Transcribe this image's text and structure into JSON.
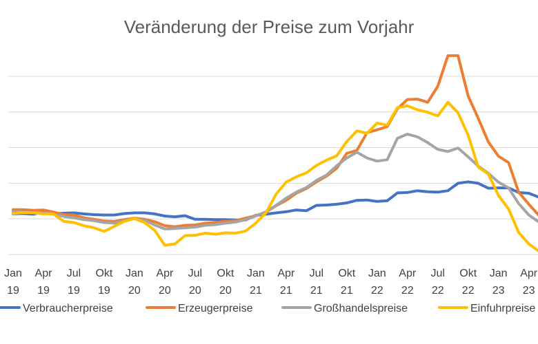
{
  "chart_data": {
    "type": "line",
    "title": "Veränderung der Preise zum Vorjahr",
    "xlabel": "",
    "ylabel": "",
    "ylim": [
      -10,
      45
    ],
    "grid": true,
    "legend_position": "bottom",
    "x": [
      "2019-01",
      "2019-02",
      "2019-03",
      "2019-04",
      "2019-05",
      "2019-06",
      "2019-07",
      "2019-08",
      "2019-09",
      "2019-10",
      "2019-11",
      "2019-12",
      "2020-01",
      "2020-02",
      "2020-03",
      "2020-04",
      "2020-05",
      "2020-06",
      "2020-07",
      "2020-08",
      "2020-09",
      "2020-10",
      "2020-11",
      "2020-12",
      "2021-01",
      "2021-02",
      "2021-03",
      "2021-04",
      "2021-05",
      "2021-06",
      "2021-07",
      "2021-08",
      "2021-09",
      "2021-10",
      "2021-11",
      "2021-12",
      "2022-01",
      "2022-02",
      "2022-03",
      "2022-04",
      "2022-05",
      "2022-06",
      "2022-07",
      "2022-08",
      "2022-09",
      "2022-10",
      "2022-11",
      "2022-12",
      "2023-01",
      "2023-02",
      "2023-03",
      "2023-04",
      "2023-05",
      "2023-06"
    ],
    "x_ticks": [
      {
        "line1": "Jan",
        "line2": "19"
      },
      {
        "line1": "Apr",
        "line2": "19"
      },
      {
        "line1": "Jul",
        "line2": "19"
      },
      {
        "line1": "Okt",
        "line2": "19"
      },
      {
        "line1": "Jan",
        "line2": "20"
      },
      {
        "line1": "Apr",
        "line2": "20"
      },
      {
        "line1": "Jul",
        "line2": "20"
      },
      {
        "line1": "Okt",
        "line2": "20"
      },
      {
        "line1": "Jan",
        "line2": "21"
      },
      {
        "line1": "Apr",
        "line2": "21"
      },
      {
        "line1": "Jul",
        "line2": "21"
      },
      {
        "line1": "Okt",
        "line2": "21"
      },
      {
        "line1": "Jan",
        "line2": "22"
      },
      {
        "line1": "Apr",
        "line2": "22"
      },
      {
        "line1": "Jul",
        "line2": "22"
      },
      {
        "line1": "Okt",
        "line2": "22"
      },
      {
        "line1": "Jan",
        "line2": "23"
      },
      {
        "line1": "Apr",
        "line2": "23"
      }
    ],
    "series": [
      {
        "name": "Verbraucherpreise",
        "color": "#4472C4",
        "values": [
          1.4,
          1.5,
          1.3,
          2.0,
          1.4,
          1.6,
          1.7,
          1.4,
          1.2,
          1.1,
          1.1,
          1.5,
          1.7,
          1.7,
          1.4,
          0.8,
          0.6,
          0.9,
          -0.1,
          -0.1,
          -0.2,
          -0.2,
          -0.3,
          -0.3,
          1.0,
          1.3,
          1.7,
          2.0,
          2.5,
          2.3,
          3.8,
          3.9,
          4.1,
          4.5,
          5.2,
          5.3,
          4.9,
          5.1,
          7.3,
          7.4,
          7.9,
          7.6,
          7.5,
          7.9,
          10.0,
          10.4,
          10.0,
          8.6,
          8.7,
          8.7,
          7.4,
          7.2,
          6.1,
          6.4
        ]
      },
      {
        "name": "Erzeugerpreise",
        "color": "#ED7D31",
        "values": [
          2.6,
          2.6,
          2.4,
          2.5,
          1.9,
          1.2,
          1.1,
          0.3,
          -0.1,
          -0.6,
          -0.7,
          -0.2,
          0.2,
          -0.1,
          -0.8,
          -1.9,
          -2.2,
          -1.8,
          -1.7,
          -1.2,
          -1.0,
          -0.7,
          -0.5,
          0.2,
          0.9,
          1.9,
          3.7,
          5.2,
          7.2,
          8.5,
          10.4,
          12.0,
          14.2,
          18.4,
          19.2,
          24.2,
          25.0,
          25.9,
          30.9,
          33.5,
          33.6,
          32.7,
          37.2,
          45.8,
          45.8,
          34.5,
          28.2,
          21.6,
          17.6,
          15.8,
          7.5,
          4.1,
          1.0,
          0.1
        ]
      },
      {
        "name": "Großhandelspreise",
        "color": "#A5A5A5",
        "values": [
          2.0,
          1.9,
          1.8,
          1.7,
          1.3,
          0.7,
          0.3,
          -0.2,
          -0.5,
          -1.0,
          -1.2,
          -0.5,
          0.1,
          -0.4,
          -1.7,
          -2.8,
          -2.7,
          -2.5,
          -2.3,
          -1.8,
          -1.6,
          -1.2,
          -0.9,
          -0.2,
          0.8,
          2.0,
          3.8,
          5.8,
          7.5,
          8.8,
          10.8,
          12.3,
          14.9,
          17.1,
          18.7,
          17.1,
          16.2,
          16.6,
          22.6,
          23.8,
          23.0,
          21.4,
          19.5,
          18.9,
          19.9,
          17.4,
          14.8,
          12.8,
          10.3,
          8.7,
          4.3,
          1.1,
          -0.9,
          -2.7
        ]
      },
      {
        "name": "Einfuhrpreise",
        "color": "#FFC000",
        "values": [
          1.5,
          1.8,
          1.7,
          1.4,
          1.4,
          -0.7,
          -1.0,
          -1.9,
          -2.5,
          -3.5,
          -2.1,
          -0.7,
          0.1,
          -1.0,
          -3.2,
          -7.4,
          -7.0,
          -4.7,
          -4.6,
          -4.0,
          -4.3,
          -3.9,
          -4.0,
          -3.4,
          -1.2,
          1.7,
          6.9,
          10.3,
          11.8,
          12.9,
          15.0,
          16.5,
          17.7,
          21.7,
          24.7,
          24.0,
          26.9,
          26.3,
          31.2,
          31.7,
          30.6,
          29.9,
          28.9,
          32.7,
          29.8,
          23.5,
          14.5,
          12.6,
          6.6,
          2.8,
          -3.8,
          -7.0,
          -9.1,
          -11.4
        ]
      }
    ]
  }
}
